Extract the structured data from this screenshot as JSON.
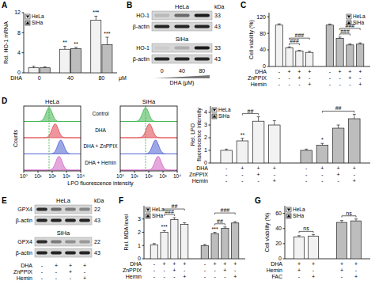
{
  "chart_data": [
    {
      "type": "bar",
      "title": "A",
      "ylabel": "Rel. HO-1 mRNA",
      "xlabel": "DHA",
      "xunit": "μM",
      "categories": [
        "0",
        "40",
        "80"
      ],
      "ylim": [
        0,
        12
      ],
      "yticks": [
        0,
        4,
        8,
        12
      ],
      "legend": "top-left",
      "series": [
        {
          "name": "HeLa",
          "color": "#f2f2f2",
          "marker": "triangle-down",
          "values": [
            1,
            4.7,
            10.5
          ],
          "errors": [
            0.3,
            0.6,
            0.8
          ],
          "sig": [
            null,
            "**",
            "***"
          ]
        },
        {
          "name": "SiHa",
          "color": "#bdbdbd",
          "marker": "triangle-up",
          "values": [
            1,
            4.8,
            5.6
          ],
          "errors": [
            0.2,
            0.3,
            1.5
          ],
          "sig": [
            null,
            "**",
            "***"
          ]
        }
      ]
    },
    {
      "type": "bar",
      "title": "C",
      "ylabel": "Cell viability (%)",
      "ylim": [
        0,
        130
      ],
      "yticks": [
        0,
        40,
        80,
        120
      ],
      "legend": "top-right",
      "conditions": [
        {
          "name": "DHA",
          "values": [
            "-",
            "+",
            "+",
            "+"
          ]
        },
        {
          "name": "ZnPPIX",
          "values": [
            "-",
            "-",
            "+",
            "-"
          ]
        },
        {
          "name": "Hemin",
          "values": [
            "-",
            "-",
            "-",
            "+"
          ]
        }
      ],
      "series": [
        {
          "name": "HeLa",
          "color": "#f2f2f2",
          "marker": "triangle-down",
          "values": [
            100,
            45,
            37,
            34
          ],
          "errors": [
            3,
            2.5,
            2,
            2.5
          ],
          "comparisons": [
            {
              "bars": [
                1,
                2
              ],
              "label": "###"
            },
            {
              "bars": [
                1,
                3
              ],
              "label": "###"
            }
          ]
        },
        {
          "name": "SiHa",
          "color": "#bdbdbd",
          "marker": "triangle-up",
          "values": [
            100,
            68,
            52,
            54
          ],
          "errors": [
            2.5,
            3,
            2.5,
            3
          ],
          "comparisons": [
            {
              "bars": [
                1,
                2
              ],
              "label": "###"
            },
            {
              "bars": [
                1,
                3
              ],
              "label": "###"
            }
          ]
        }
      ]
    },
    {
      "type": "ridgeline",
      "title": "D",
      "xlabel": "LPO fluorescence intensity",
      "ylabel": "Counts",
      "log": "x",
      "tick_labels": "x",
      "xlim": [
        1,
        10000
      ],
      "xticks": [
        {
          "value": 1,
          "label": "10⁰"
        },
        {
          "value": 10,
          "label": "10¹"
        },
        {
          "value": 100,
          "label": "10²"
        },
        {
          "value": 1000,
          "label": "10³"
        },
        {
          "value": 10000,
          "label": "10⁴"
        }
      ],
      "panels": [
        "HeLa",
        "SiHa"
      ],
      "series": [
        {
          "name": "Control",
          "color": "#3cb44b",
          "peaks": [
            60,
            60
          ]
        },
        {
          "name": "DHA",
          "color": "#e0404a",
          "peaks": [
            160,
            110
          ]
        },
        {
          "name": "DHA + ZnPPIX",
          "color": "#4a5fd0",
          "peaks": [
            400,
            300
          ]
        },
        {
          "name": "DHA + Hemin",
          "color": "#d060c0",
          "peaks": [
            300,
            450
          ]
        }
      ]
    },
    {
      "type": "bar",
      "ylabel": [
        "Rel. LPO",
        "fluorescence intensity"
      ],
      "ylim": [
        0,
        4.5
      ],
      "yticks": [
        0,
        1,
        2,
        3,
        4
      ],
      "legend": "top-left",
      "conditions": [
        {
          "name": "DHA",
          "values": [
            "-",
            "+",
            "+",
            "+"
          ]
        },
        {
          "name": "ZnPPIX",
          "values": [
            "-",
            "-",
            "+",
            "-"
          ]
        },
        {
          "name": "Hemin",
          "values": [
            "-",
            "-",
            "-",
            "+"
          ]
        }
      ],
      "series": [
        {
          "name": "HeLa",
          "color": "#f2f2f2",
          "marker": "triangle-down",
          "values": [
            1,
            1.75,
            3.3,
            3.0
          ],
          "errors": [
            0.1,
            0.2,
            0.35,
            0.35
          ],
          "sig": [
            null,
            "**",
            null,
            null
          ],
          "comparisons": [
            {
              "bars": [
                1,
                2
              ],
              "label": "##"
            }
          ]
        },
        {
          "name": "SiHa",
          "color": "#bdbdbd",
          "marker": "triangle-up",
          "values": [
            1,
            1.4,
            2.75,
            3.5
          ],
          "errors": [
            0.1,
            0.15,
            0.25,
            0.35
          ],
          "sig": [
            null,
            "*",
            null,
            null
          ],
          "comparisons": [
            {
              "bars": [
                1,
                3
              ],
              "label": "##"
            }
          ]
        }
      ]
    },
    {
      "type": "bar",
      "title": "F",
      "ylabel": "Rel. MDA level",
      "ylim": [
        0,
        4
      ],
      "yticks": [
        0,
        1,
        2,
        3
      ],
      "legend": "top-left",
      "conditions": [
        {
          "name": "DHA",
          "values": [
            "-",
            "+",
            "+",
            "+"
          ]
        },
        {
          "name": "ZnPPIX",
          "values": [
            "-",
            "-",
            "+",
            "-"
          ]
        },
        {
          "name": "Hemin",
          "values": [
            "-",
            "-",
            "-",
            "+"
          ]
        }
      ],
      "series": [
        {
          "name": "HeLa",
          "color": "#f2f2f2",
          "marker": "triangle-down",
          "values": [
            1.05,
            2.0,
            2.95,
            2.6
          ],
          "errors": [
            0.1,
            0.12,
            0.15,
            0.12
          ],
          "sig": [
            null,
            "***",
            null,
            null
          ],
          "comparisons": [
            {
              "bars": [
                1,
                2
              ],
              "label": "###"
            },
            {
              "bars": [
                1,
                3
              ],
              "label": "##"
            }
          ]
        },
        {
          "name": "SiHa",
          "color": "#bdbdbd",
          "marker": "triangle-up",
          "values": [
            1,
            1.9,
            2.3,
            2.7
          ],
          "errors": [
            0.08,
            0.1,
            0.1,
            0.1
          ],
          "sig": [
            null,
            "***",
            null,
            null
          ],
          "comparisons": [
            {
              "bars": [
                1,
                2
              ],
              "label": "##"
            },
            {
              "bars": [
                1,
                3
              ],
              "label": "###"
            }
          ]
        }
      ]
    },
    {
      "type": "bar",
      "title": "G",
      "ylabel": "Cell viability (%)",
      "ylim": [
        0,
        70
      ],
      "yticks": [
        0,
        20,
        40,
        60
      ],
      "legend": "top-left",
      "conditions": [
        {
          "name": "DHA",
          "values": [
            "+",
            "+"
          ]
        },
        {
          "name": "Hemin",
          "values": [
            "+",
            "-"
          ]
        },
        {
          "name": "FAC",
          "values": [
            "-",
            "+"
          ]
        }
      ],
      "series": [
        {
          "name": "HeLa",
          "color": "#f2f2f2",
          "marker": "triangle-down",
          "values": [
            29,
            30
          ],
          "errors": [
            1.5,
            2
          ],
          "comparisons": [
            {
              "bars": [
                0,
                1
              ],
              "label": "ns"
            }
          ]
        },
        {
          "name": "SiHa",
          "color": "#bdbdbd",
          "marker": "triangle-up",
          "values": [
            48,
            50
          ],
          "errors": [
            2.5,
            2.5
          ],
          "comparisons": [
            {
              "bars": [
                0,
                1
              ],
              "label": "ns"
            }
          ]
        }
      ]
    }
  ],
  "blots": [
    {
      "title": "B",
      "unit": "kDa",
      "groups": [
        {
          "name": "HeLa",
          "rows": [
            {
              "name": "HO-1",
              "kda": 33,
              "intensity": [
                0.15,
                0.55,
                0.95
              ]
            },
            {
              "name": "β-actin",
              "kda": 43,
              "intensity": [
                0.9,
                0.9,
                0.9
              ]
            }
          ]
        },
        {
          "name": "SiHa",
          "rows": [
            {
              "name": "HO-1",
              "kda": 33,
              "intensity": [
                0.05,
                0.2,
                0.95
              ]
            },
            {
              "name": "β-actin",
              "kda": 43,
              "intensity": [
                0.9,
                0.9,
                0.9
              ]
            }
          ]
        }
      ],
      "lanes": [
        "0",
        "40",
        "80"
      ],
      "treatment": "DHA (μM)"
    },
    {
      "title": "E",
      "unit": "kDa",
      "groups": [
        {
          "name": "HeLa",
          "rows": [
            {
              "name": "GPX4",
              "kda": 22,
              "intensity": [
                0.85,
                0.55,
                0.45,
                0.4
              ]
            },
            {
              "name": "β-actin",
              "kda": 43,
              "intensity": [
                0.9,
                0.9,
                0.9,
                0.9
              ]
            }
          ]
        },
        {
          "name": "SiHa",
          "rows": [
            {
              "name": "GPX4",
              "kda": 22,
              "intensity": [
                0.85,
                0.45,
                0.35,
                0.3
              ]
            },
            {
              "name": "β-actin",
              "kda": 43,
              "intensity": [
                0.9,
                0.9,
                0.9,
                0.9
              ]
            }
          ]
        }
      ],
      "conditions": [
        {
          "name": "DHA",
          "values": [
            "-",
            "+",
            "+",
            "+"
          ]
        },
        {
          "name": "ZnPPIX",
          "values": [
            "-",
            "-",
            "+",
            "-"
          ]
        },
        {
          "name": "Hemin",
          "values": [
            "-",
            "-",
            "-",
            "+"
          ]
        }
      ]
    }
  ]
}
